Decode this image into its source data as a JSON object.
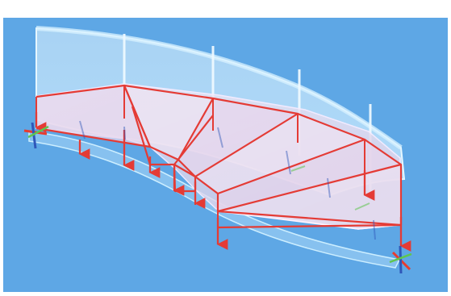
{
  "caption": "",
  "colors": {
    "background": "#5ea7e5",
    "glass": "#d2ecff",
    "glass_edge": "#e8f6ff",
    "floor": "#efe4f4",
    "step": "#ead8ed",
    "red": "#e43b35",
    "axis_x": "#e83b2e",
    "axis_y": "#2f57b9",
    "axis_z": "#5fc64f"
  },
  "icons": {
    "support_left": "coordinate-axes-icon",
    "support_right": "coordinate-axes-icon"
  }
}
